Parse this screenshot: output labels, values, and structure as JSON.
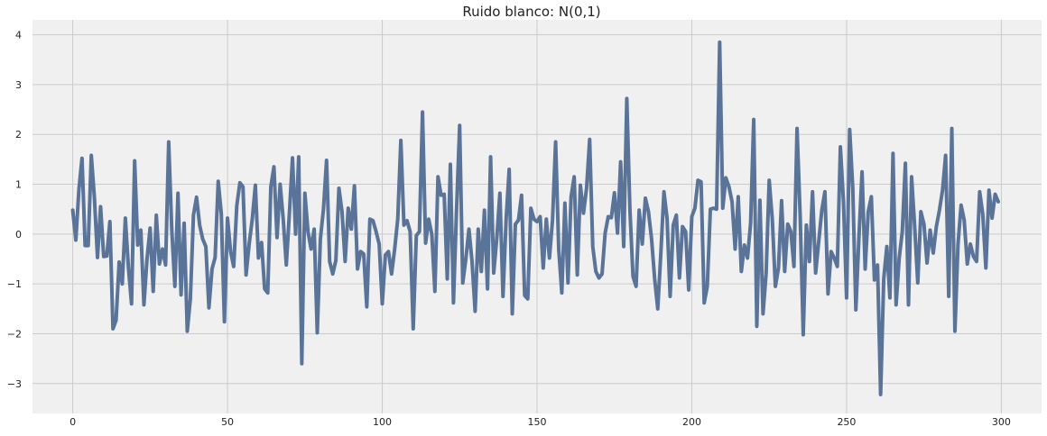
{
  "chart_data": {
    "type": "line",
    "title": "Ruido blanco: N(0,1)",
    "xlabel": "",
    "ylabel": "",
    "xlim": [
      -13,
      313
    ],
    "ylim": [
      -3.6,
      4.3
    ],
    "x_ticks": [
      0,
      50,
      100,
      150,
      200,
      250,
      300
    ],
    "y_ticks": [
      -3,
      -2,
      -1,
      0,
      1,
      2,
      3,
      4
    ],
    "grid": true,
    "background": "#f0f0f0",
    "grid_color": "#cbcbcb",
    "series": [
      {
        "color": "#5a7399",
        "x_start": 0,
        "x_step": 1,
        "values": [
          0.48,
          -0.12,
          0.9,
          1.52,
          -0.23,
          -0.23,
          1.58,
          0.73,
          -0.47,
          0.55,
          -0.45,
          -0.44,
          0.25,
          -1.9,
          -1.73,
          -0.56,
          -1.0,
          0.32,
          -0.68,
          -1.4,
          1.47,
          -0.22,
          0.08,
          -1.42,
          -0.5,
          0.12,
          -1.15,
          0.38,
          -0.6,
          -0.3,
          -0.62,
          1.85,
          0.08,
          -1.05,
          0.82,
          -1.22,
          0.22,
          -1.95,
          -1.3,
          0.38,
          0.74,
          0.18,
          -0.1,
          -0.25,
          -1.48,
          -0.7,
          -0.47,
          1.06,
          0.4,
          -1.76,
          0.32,
          -0.35,
          -0.65,
          0.57,
          1.03,
          0.95,
          -0.82,
          -0.2,
          0.3,
          0.98,
          -0.48,
          -0.17,
          -1.1,
          -1.18,
          0.95,
          1.35,
          -0.07,
          1.0,
          0.3,
          -0.62,
          0.42,
          1.53,
          0.0,
          1.55,
          -2.6,
          0.82,
          0.05,
          -0.3,
          0.1,
          -1.98,
          -0.1,
          0.5,
          1.48,
          -0.55,
          -0.8,
          -0.53,
          0.92,
          0.45,
          -0.55,
          0.52,
          0.1,
          0.97,
          -0.7,
          -0.35,
          -0.4,
          -1.46,
          0.3,
          0.27,
          0.05,
          -0.2,
          -1.4,
          -0.42,
          -0.35,
          -0.8,
          -0.3,
          0.3,
          1.88,
          0.18,
          0.27,
          0.05,
          -1.9,
          -0.03,
          0.05,
          2.45,
          -0.18,
          0.3,
          0.0,
          -1.15,
          1.15,
          0.78,
          0.8,
          -0.9,
          1.4,
          -1.38,
          0.5,
          2.18,
          -0.98,
          -0.5,
          0.1,
          -0.55,
          -1.55,
          0.1,
          -0.75,
          0.48,
          -1.1,
          1.55,
          -0.78,
          -0.08,
          0.82,
          -1.25,
          0.28,
          1.3,
          -1.6,
          0.2,
          0.28,
          0.78,
          -1.23,
          -1.3,
          0.52,
          0.3,
          0.25,
          0.35,
          -0.68,
          0.3,
          -0.48,
          0.28,
          1.85,
          -0.3,
          -1.18,
          0.62,
          -0.98,
          0.75,
          1.15,
          -0.82,
          0.98,
          0.42,
          0.92,
          1.9,
          -0.25,
          -0.75,
          -0.88,
          -0.8,
          0.02,
          0.35,
          0.33,
          0.83,
          0.02,
          1.45,
          -0.25,
          2.72,
          0.5,
          -0.85,
          -1.05,
          0.48,
          -0.2,
          0.72,
          0.45,
          -0.1,
          -0.9,
          -1.5,
          -0.38,
          0.85,
          0.32,
          -1.25,
          0.18,
          0.38,
          -0.88,
          0.15,
          0.05,
          -1.12,
          0.35,
          0.52,
          1.08,
          1.05,
          -1.38,
          -1.05,
          0.5,
          0.52,
          0.5,
          3.85,
          0.52,
          1.13,
          0.95,
          0.65,
          -0.3,
          0.75,
          -0.75,
          -0.22,
          -0.48,
          0.22,
          2.3,
          -1.85,
          0.68,
          -1.6,
          -0.8,
          1.08,
          0.3,
          -1.05,
          -0.68,
          0.67,
          -0.75,
          0.2,
          0.05,
          -0.65,
          2.12,
          0.38,
          -2.02,
          0.18,
          -0.55,
          0.85,
          -0.78,
          -0.15,
          0.48,
          0.85,
          -1.2,
          -0.35,
          -0.48,
          -0.65,
          1.75,
          0.65,
          -1.28,
          2.1,
          0.92,
          -1.52,
          -0.05,
          1.25,
          -0.7,
          0.45,
          0.75,
          -0.92,
          -0.62,
          -3.22,
          -0.9,
          -0.25,
          -1.28,
          1.62,
          -1.42,
          -0.48,
          0.05,
          1.42,
          -1.42,
          1.15,
          0.15,
          -0.98,
          0.45,
          0.2,
          -0.58,
          0.08,
          -0.38,
          0.15,
          0.48,
          0.88,
          1.58,
          -1.25,
          2.12,
          -1.95,
          -0.2,
          0.58,
          0.28,
          -0.6,
          -0.2,
          -0.45,
          -0.55,
          0.85,
          0.4,
          -0.68,
          0.88,
          0.32,
          0.8,
          0.65
        ]
      }
    ]
  }
}
